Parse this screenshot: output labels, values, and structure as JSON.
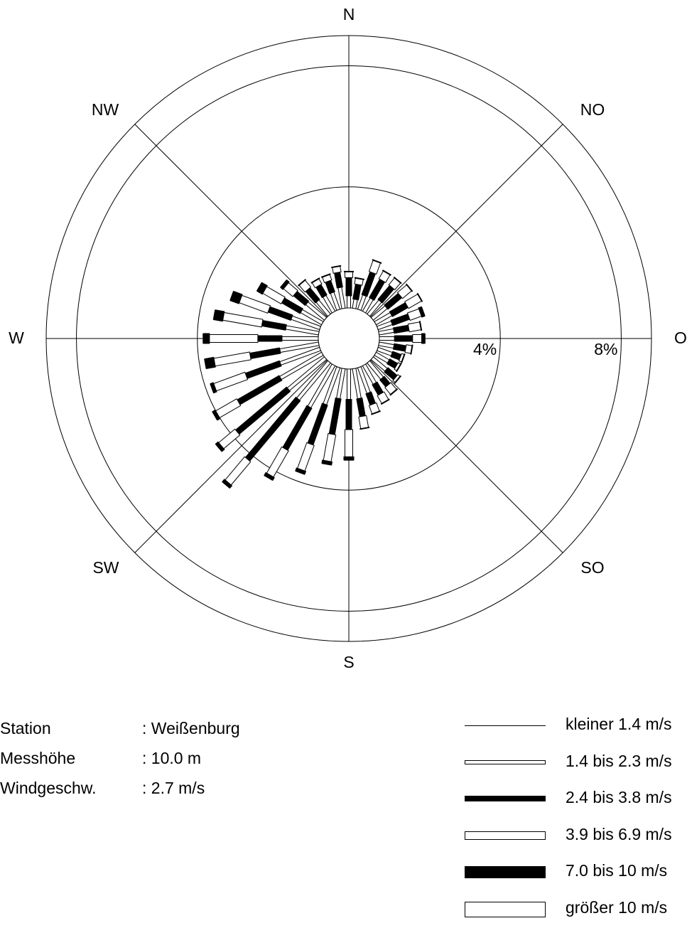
{
  "chart_data": {
    "type": "wind-rose",
    "directions": 36,
    "radial_unit": "%",
    "radial_max": 9.0,
    "rings": [
      {
        "value": 4,
        "label": "4%"
      },
      {
        "value": 8,
        "label": "8%"
      }
    ],
    "compass": [
      {
        "label": "N",
        "angle": 0
      },
      {
        "label": "NO",
        "angle": 45
      },
      {
        "label": "O",
        "angle": 90
      },
      {
        "label": "SO",
        "angle": 135
      },
      {
        "label": "S",
        "angle": 180
      },
      {
        "label": "SW",
        "angle": 225
      },
      {
        "label": "W",
        "angle": 270
      },
      {
        "label": "NW",
        "angle": 315
      }
    ],
    "speed_classes": [
      {
        "label": "kleiner 1.4 m/s",
        "style": "thin-line"
      },
      {
        "label": "1.4 bis 2.3 m/s",
        "style": "narrow-open"
      },
      {
        "label": "2.4 bis 3.8 m/s",
        "style": "narrow-filled"
      },
      {
        "label": "3.9 bis 6.9 m/s",
        "style": "medium-open"
      },
      {
        "label": "7.0 bis 10 m/s",
        "style": "wide-filled"
      },
      {
        "label": "größer 10 m/s",
        "style": "wide-open"
      }
    ],
    "sectors": [
      {
        "direction": 0,
        "values": [
          0.0,
          0.4,
          0.6,
          0.2,
          0.0,
          0.0
        ]
      },
      {
        "direction": 10,
        "values": [
          0.0,
          0.3,
          0.5,
          0.2,
          0.0,
          0.0
        ]
      },
      {
        "direction": 20,
        "values": [
          0.0,
          0.5,
          0.8,
          0.4,
          0.0,
          0.0
        ]
      },
      {
        "direction": 30,
        "values": [
          0.0,
          0.5,
          0.7,
          0.3,
          0.0,
          0.0
        ]
      },
      {
        "direction": 40,
        "values": [
          0.0,
          0.6,
          0.6,
          0.3,
          0.0,
          0.0
        ]
      },
      {
        "direction": 50,
        "values": [
          0.0,
          0.6,
          0.6,
          0.4,
          0.0,
          0.0
        ]
      },
      {
        "direction": 60,
        "values": [
          0.0,
          0.6,
          0.6,
          0.5,
          0.0,
          0.0
        ]
      },
      {
        "direction": 70,
        "values": [
          0.0,
          0.5,
          0.6,
          0.4,
          0.1,
          0.0
        ]
      },
      {
        "direction": 80,
        "values": [
          0.0,
          0.5,
          0.5,
          0.4,
          0.0,
          0.0
        ]
      },
      {
        "direction": 90,
        "values": [
          0.0,
          0.5,
          0.6,
          0.3,
          0.1,
          0.0
        ]
      },
      {
        "direction": 100,
        "values": [
          0.0,
          0.5,
          0.4,
          0.2,
          0.0,
          0.0
        ]
      },
      {
        "direction": 110,
        "values": [
          0.0,
          0.5,
          0.3,
          0.1,
          0.0,
          0.0
        ]
      },
      {
        "direction": 120,
        "values": [
          0.0,
          0.5,
          0.3,
          0.1,
          0.0,
          0.0
        ]
      },
      {
        "direction": 130,
        "values": [
          0.0,
          0.6,
          0.4,
          0.1,
          0.0,
          0.0
        ]
      },
      {
        "direction": 140,
        "values": [
          0.0,
          0.7,
          0.3,
          0.3,
          0.0,
          0.0
        ]
      },
      {
        "direction": 150,
        "values": [
          0.0,
          0.7,
          0.4,
          0.3,
          0.0,
          0.0
        ]
      },
      {
        "direction": 160,
        "values": [
          0.0,
          0.9,
          0.4,
          0.3,
          0.0,
          0.0
        ]
      },
      {
        "direction": 170,
        "values": [
          0.0,
          1.0,
          0.6,
          0.4,
          0.0,
          0.0
        ]
      },
      {
        "direction": 180,
        "values": [
          0.0,
          1.0,
          1.0,
          0.9,
          0.1,
          0.0
        ]
      },
      {
        "direction": 190,
        "values": [
          0.0,
          1.0,
          1.2,
          0.9,
          0.1,
          0.0
        ]
      },
      {
        "direction": 200,
        "values": [
          0.0,
          1.3,
          1.4,
          0.9,
          0.1,
          0.0
        ]
      },
      {
        "direction": 210,
        "values": [
          0.0,
          1.6,
          1.6,
          1.0,
          0.1,
          0.0
        ]
      },
      {
        "direction": 220,
        "values": [
          0.0,
          1.6,
          2.6,
          1.0,
          0.1,
          0.0
        ]
      },
      {
        "direction": 230,
        "values": [
          0.0,
          1.6,
          2.2,
          0.7,
          0.1,
          0.0
        ]
      },
      {
        "direction": 240,
        "values": [
          0.0,
          1.6,
          1.6,
          0.8,
          0.1,
          0.0
        ]
      },
      {
        "direction": 250,
        "values": [
          0.0,
          1.4,
          1.2,
          1.1,
          0.1,
          0.0
        ]
      },
      {
        "direction": 260,
        "values": [
          0.0,
          1.3,
          1.0,
          1.2,
          0.3,
          0.0
        ]
      },
      {
        "direction": 270,
        "values": [
          0.0,
          1.2,
          0.8,
          1.6,
          0.2,
          0.0
        ]
      },
      {
        "direction": 280,
        "values": [
          0.0,
          1.1,
          0.8,
          1.3,
          0.3,
          0.0
        ]
      },
      {
        "direction": 290,
        "values": [
          0.0,
          1.0,
          0.8,
          1.0,
          0.3,
          0.0
        ]
      },
      {
        "direction": 300,
        "values": [
          0.0,
          0.8,
          0.7,
          0.7,
          0.2,
          0.0
        ]
      },
      {
        "direction": 310,
        "values": [
          0.0,
          0.8,
          0.5,
          0.4,
          0.1,
          0.0
        ]
      },
      {
        "direction": 320,
        "values": [
          0.0,
          0.6,
          0.5,
          0.3,
          0.0,
          0.0
        ]
      },
      {
        "direction": 330,
        "values": [
          0.0,
          0.6,
          0.4,
          0.2,
          0.0,
          0.0
        ]
      },
      {
        "direction": 340,
        "values": [
          0.0,
          0.6,
          0.4,
          0.2,
          0.0,
          0.0
        ]
      },
      {
        "direction": 350,
        "values": [
          0.0,
          0.7,
          0.5,
          0.2,
          0.0,
          0.0
        ]
      }
    ]
  },
  "station_info": [
    {
      "key": "Station",
      "value": ": Weißenburg"
    },
    {
      "key": "Messhöhe",
      "value": ": 10.0 m"
    },
    {
      "key": "Windgeschw.",
      "value": ": 2.7 m/s"
    }
  ]
}
